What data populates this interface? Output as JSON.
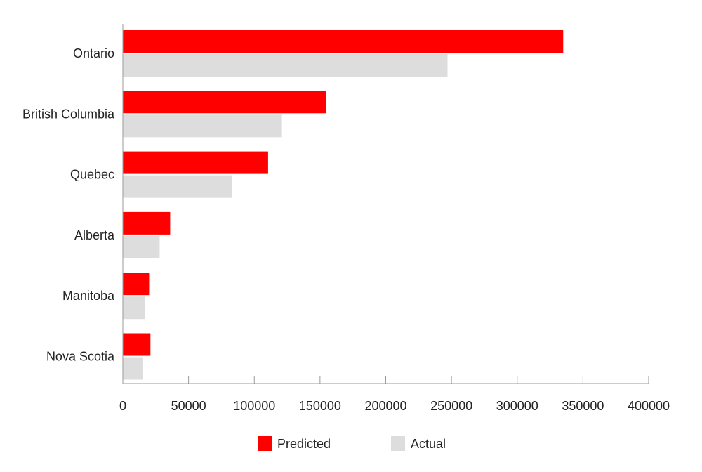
{
  "chart_data": {
    "type": "bar",
    "orientation": "horizontal",
    "categories": [
      "Ontario",
      "British Columbia",
      "Quebec",
      "Alberta",
      "Manitoba",
      "Nova Scotia"
    ],
    "series": [
      {
        "name": "Predicted",
        "color": "#ff0000",
        "values": [
          335000,
          154500,
          110500,
          36000,
          20000,
          21000
        ]
      },
      {
        "name": "Actual",
        "color": "#dddddd",
        "values": [
          247000,
          120500,
          83000,
          28000,
          17000,
          15000
        ]
      }
    ],
    "xlim": [
      0,
      400000
    ],
    "xticks": [
      "0",
      "50000",
      "100000",
      "150000",
      "200000",
      "250000",
      "300000",
      "350000",
      "400000"
    ],
    "grid": false,
    "legend_position": "bottom"
  }
}
